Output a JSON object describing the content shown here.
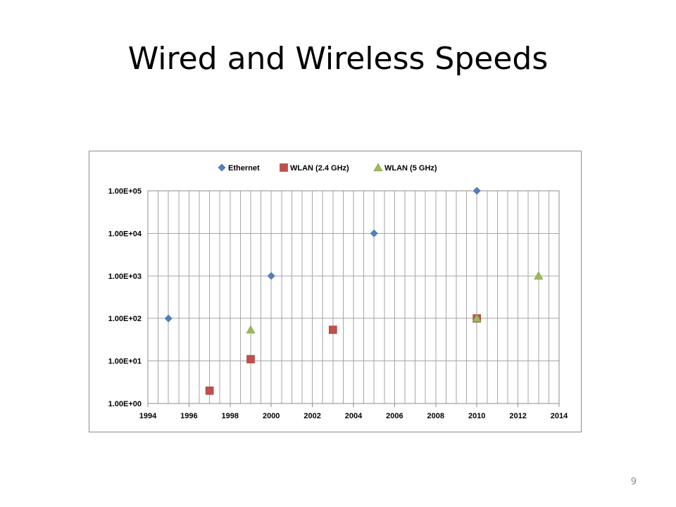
{
  "slide": {
    "title": "Wired and Wireless Speeds",
    "page_number": "9"
  },
  "chart_data": {
    "type": "scatter",
    "xlim": [
      1994,
      2014
    ],
    "x_tick_values": [
      1994,
      1996,
      1998,
      2000,
      2002,
      2004,
      2006,
      2008,
      2010,
      2012,
      2014
    ],
    "x_tick_labels": [
      "1994",
      "1996",
      "1998",
      "2000",
      "2002",
      "2004",
      "2006",
      "2008",
      "2010",
      "2012",
      "2014"
    ],
    "x_minor_gridline_step": 0.5,
    "y_scale": "log",
    "ylim": [
      1,
      100000
    ],
    "y_tick_values": [
      1,
      10,
      100,
      1000,
      10000,
      100000
    ],
    "y_tick_labels": [
      "1.00E+00",
      "1.00E+01",
      "1.00E+02",
      "1.00E+03",
      "1.00E+04",
      "1.00E+05"
    ],
    "grid": true,
    "legend_position": "top",
    "series": [
      {
        "name": "Ethernet",
        "marker": "diamond",
        "color": "#4F81BD",
        "x": [
          1995,
          2000,
          2005,
          2010
        ],
        "y": [
          100,
          1000,
          10000,
          100000
        ]
      },
      {
        "name": "WLAN (2.4 GHz)",
        "marker": "square",
        "color": "#C0504D",
        "x": [
          1997,
          1999,
          2003,
          2010
        ],
        "y": [
          2,
          11,
          54,
          100
        ]
      },
      {
        "name": "WLAN (5 GHz)",
        "marker": "triangle",
        "color": "#9BBB59",
        "x": [
          1999,
          2010,
          2013
        ],
        "y": [
          54,
          100,
          1000
        ]
      }
    ]
  }
}
